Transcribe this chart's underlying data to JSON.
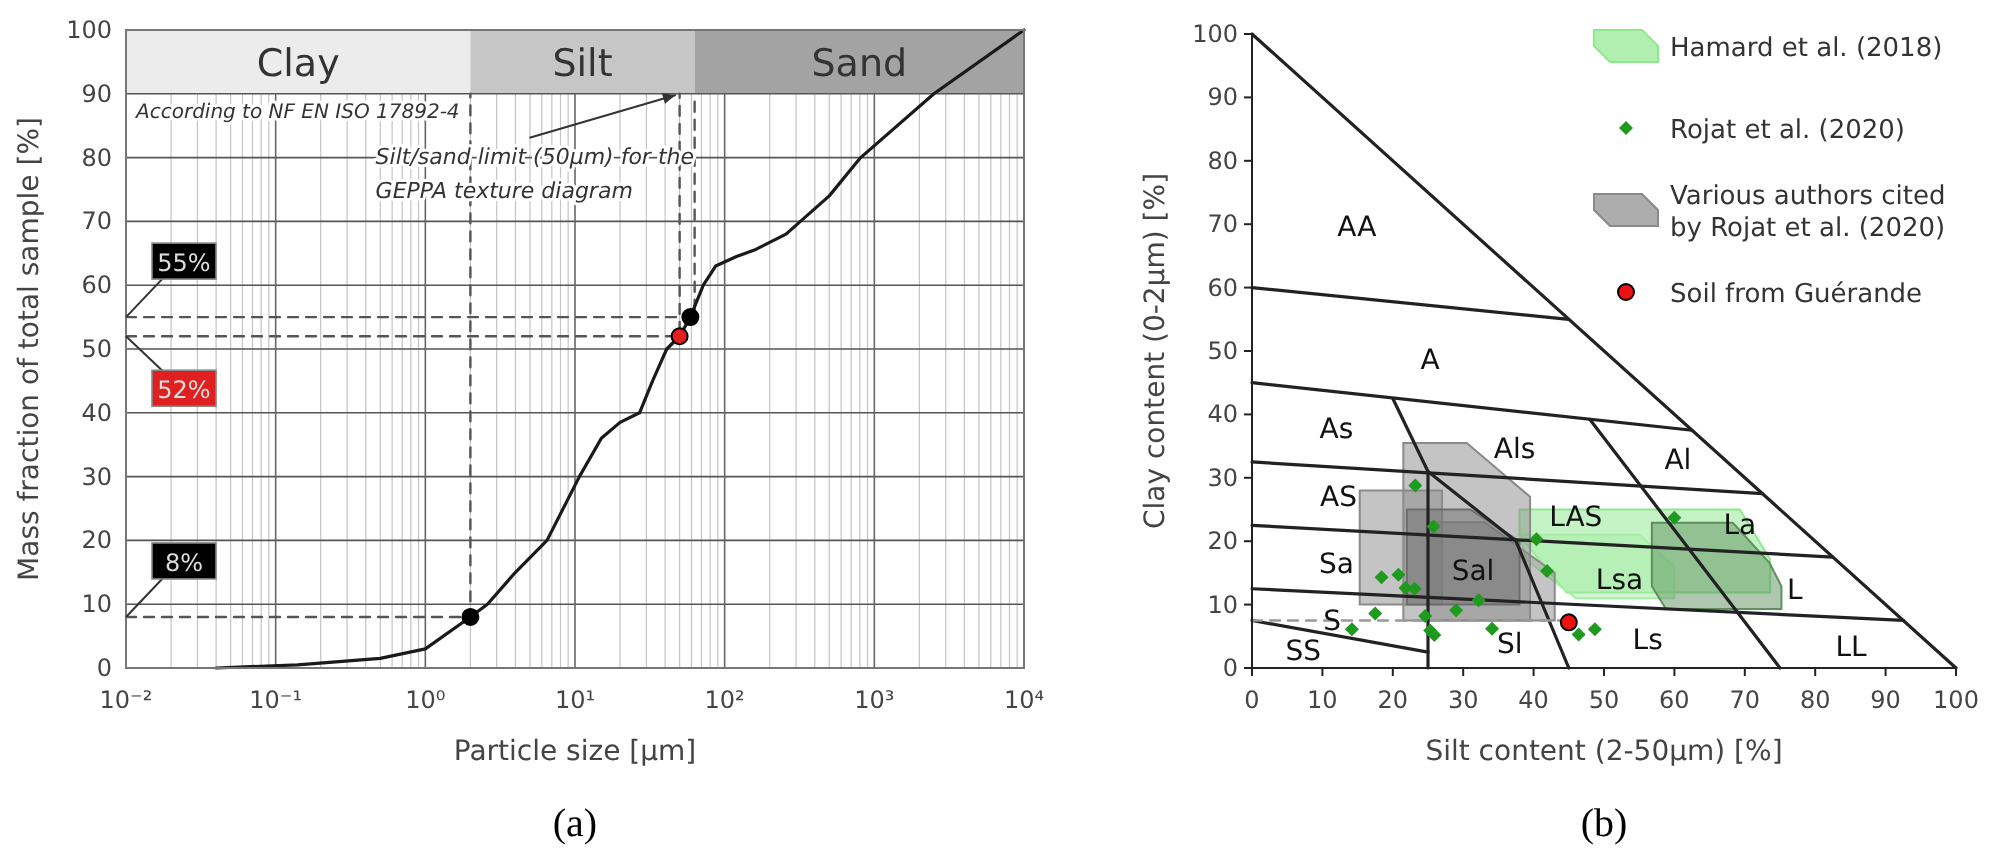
{
  "chart_data": [
    {
      "type": "line",
      "title": "(a)",
      "xlabel": "Particle size [µm]",
      "ylabel": "Mass fraction of total sample [%]",
      "log": "x",
      "grid": true,
      "legend": false,
      "xlim": [
        0.01,
        10000
      ],
      "ylim": [
        0,
        100
      ],
      "xticks": [
        {
          "value": 0.01,
          "label": "10⁻²"
        },
        {
          "value": 0.1,
          "label": "10⁻¹"
        },
        {
          "value": 1,
          "label": "10⁰"
        },
        {
          "value": 10,
          "label": "10¹"
        },
        {
          "value": 100,
          "label": "10²"
        },
        {
          "value": 1000,
          "label": "10³"
        },
        {
          "value": 10000,
          "label": "10⁴"
        }
      ],
      "yticks": [
        0,
        10,
        20,
        30,
        40,
        50,
        60,
        70,
        80,
        90,
        100
      ],
      "bands": [
        {
          "axis": "x",
          "from": 0.01,
          "to": 2,
          "label": "Clay",
          "color": "#ececec"
        },
        {
          "axis": "x",
          "from": 2,
          "to": 63,
          "label": "Silt",
          "color": "#c6c6c6"
        },
        {
          "axis": "x",
          "from": 63,
          "to": 10000,
          "label": "Sand",
          "color": "#a3a3a3"
        }
      ],
      "series": [
        {
          "type": "line",
          "color": "#555555",
          "line_style": "dashed",
          "x": [
            0.01,
            2,
            2
          ],
          "values": [
            8,
            8,
            90
          ]
        },
        {
          "type": "line",
          "color": "#555555",
          "line_style": "dashed",
          "x": [
            0.01,
            63,
            63
          ],
          "values": [
            55,
            55,
            90
          ]
        },
        {
          "type": "line",
          "color": "#555555",
          "line_style": "dashed",
          "x": [
            0.01,
            50,
            50
          ],
          "values": [
            52,
            52,
            90
          ]
        },
        {
          "type": "line",
          "color": "#1a1a1a",
          "line_style": "solid",
          "x": [
            0.04,
            0.14,
            0.5,
            1,
            2,
            2.6,
            4,
            6.5,
            10.7,
            15,
            20,
            27,
            33,
            41,
            50,
            59,
            72,
            87,
            120,
            158,
            257,
            500,
            810,
            2500,
            10000
          ],
          "values": [
            0,
            0.5,
            1.5,
            3,
            8,
            10,
            15,
            20,
            30,
            36,
            38.5,
            40,
            45,
            50,
            52,
            55,
            60,
            63,
            64.5,
            65.5,
            68,
            74,
            80,
            90,
            100
          ]
        },
        {
          "type": "scatter",
          "color": "#000000",
          "marker": "circle",
          "x": [
            2,
            59
          ],
          "values": [
            8,
            55
          ]
        },
        {
          "type": "scatter",
          "color": "#e02020",
          "marker": "circle",
          "x": [
            50
          ],
          "values": [
            52
          ]
        }
      ],
      "annotations": [
        "According to NF EN ISO 17892-4",
        {
          "text": "Silt/sand limit (50µm) for the GEPPA texture diagram",
          "x": 50,
          "y": 90
        },
        {
          "text": "55%",
          "y": 55
        },
        {
          "text": "52%",
          "y": 52
        },
        {
          "text": "8%",
          "y": 8
        }
      ]
    },
    {
      "type": "scatter",
      "title": "(b)",
      "xlabel": "Silt content (2-50µm) [%]",
      "ylabel": "Clay content (0-2µm) [%]",
      "grid": false,
      "legend": "top right",
      "xlim": [
        0,
        100
      ],
      "ylim": [
        0,
        100
      ],
      "xticks": [
        0,
        10,
        20,
        30,
        40,
        50,
        60,
        70,
        80,
        90,
        100
      ],
      "yticks": [
        0,
        10,
        20,
        30,
        40,
        50,
        60,
        70,
        80,
        90,
        100
      ],
      "series": [
        {
          "type": "area",
          "name": "Hamard et al. (2018)",
          "color": "#8ee88e",
          "x": [
            38,
            69.3,
            73.6,
            73.6,
            44.7,
            38
          ],
          "values": [
            25,
            25,
            17.1,
            11.9,
            11.9,
            20.8
          ]
        },
        {
          "type": "area",
          "color": "#a6eea6",
          "x": [
            38,
            55,
            60,
            60,
            46,
            39
          ],
          "values": [
            21,
            21,
            16,
            11,
            11,
            17
          ]
        },
        {
          "type": "area",
          "color": "#5e8f5e",
          "x": [
            56.8,
            68.3,
            73.5,
            75.2,
            75.2,
            58.8,
            56.8
          ],
          "values": [
            22.9,
            22.9,
            16.6,
            12.9,
            9.3,
            9.3,
            12.9
          ]
        },
        {
          "type": "scatter",
          "name": "Rojat et al. (2020)",
          "color": "#1e9a1e",
          "marker": "diamond",
          "x": [
            23.2,
            25.8,
            18.4,
            20.8,
            21.8,
            23.1,
            32.2,
            17.5,
            29,
            14.2,
            24.6,
            25.3,
            25.9,
            34.1,
            41.9,
            46.4,
            48.7,
            60,
            40.4
          ],
          "values": [
            28.8,
            22.3,
            14.3,
            14.7,
            12.6,
            12.5,
            10.7,
            8.6,
            9.1,
            6.1,
            8.2,
            5.9,
            5.2,
            6.2,
            15.3,
            5.3,
            6.1,
            23.7,
            20.3
          ]
        },
        {
          "type": "area",
          "name": "Various authors cited by Rojat et al. (2020)",
          "color": "#8a8a8a",
          "x": [
            21.5,
            30.5,
            39.5,
            39.5,
            21.5
          ],
          "values": [
            35.5,
            35.5,
            27,
            7.5,
            7.5
          ]
        },
        {
          "type": "area",
          "color": "#8a8a8a",
          "x": [
            15.3,
            27,
            27,
            15.3
          ],
          "values": [
            28,
            28,
            10,
            10
          ]
        },
        {
          "type": "area",
          "color": "#8a8a8a",
          "x": [
            25,
            33,
            43,
            43,
            25
          ],
          "values": [
            23,
            23,
            15,
            7.5,
            7.5
          ]
        },
        {
          "type": "area",
          "color": "#6e6e6e",
          "x": [
            22,
            31,
            38,
            38,
            22
          ],
          "values": [
            25,
            25,
            20,
            10,
            10
          ]
        },
        {
          "type": "scatter",
          "name": "Soil from Guérande",
          "color": "#ee1111",
          "marker": "circle",
          "x": [
            45
          ],
          "values": [
            7.2
          ]
        },
        {
          "type": "line",
          "color": "#222222",
          "line_style": "solid",
          "x": [
            0,
            100
          ],
          "values": [
            100,
            0
          ]
        },
        {
          "type": "line",
          "color": "#222222",
          "line_style": "solid",
          "x": [
            0,
            45
          ],
          "values": [
            60,
            55
          ]
        },
        {
          "type": "line",
          "color": "#222222",
          "line_style": "solid",
          "x": [
            0,
            62.5
          ],
          "values": [
            45,
            37.5
          ]
        },
        {
          "type": "line",
          "color": "#222222",
          "line_style": "solid",
          "x": [
            0,
            72.5
          ],
          "values": [
            32.5,
            27.5
          ]
        },
        {
          "type": "line",
          "color": "#222222",
          "line_style": "solid",
          "x": [
            0,
            82.5
          ],
          "values": [
            22.5,
            17.5
          ]
        },
        {
          "type": "line",
          "color": "#222222",
          "line_style": "solid",
          "x": [
            0,
            92.5
          ],
          "values": [
            12.5,
            7.5
          ]
        },
        {
          "type": "line",
          "color": "#222222",
          "line_style": "solid",
          "x": [
            0,
            25
          ],
          "values": [
            7.5,
            2.5
          ]
        },
        {
          "type": "line",
          "color": "#222222",
          "line_style": "solid",
          "x": [
            25,
            25
          ],
          "values": [
            0,
            31
          ]
        },
        {
          "type": "line",
          "color": "#222222",
          "line_style": "solid",
          "x": [
            20,
            25,
            37.5,
            45
          ],
          "values": [
            42.5,
            31,
            20,
            0
          ]
        },
        {
          "type": "line",
          "color": "#222222",
          "line_style": "solid",
          "x": [
            48,
            75
          ],
          "values": [
            39.2,
            0
          ]
        },
        {
          "type": "line",
          "color": "#999999",
          "line_style": "dashed",
          "x": [
            0,
            44
          ],
          "values": [
            7.5,
            7.5
          ]
        }
      ],
      "annotations": [
        "AA",
        "A",
        "As",
        "Als",
        "Al",
        "AS",
        "LAS",
        "La",
        "Sa",
        "Sal",
        "Lsa",
        "L",
        "S",
        "SS",
        "Sl",
        "Ls",
        "LL"
      ]
    }
  ]
}
